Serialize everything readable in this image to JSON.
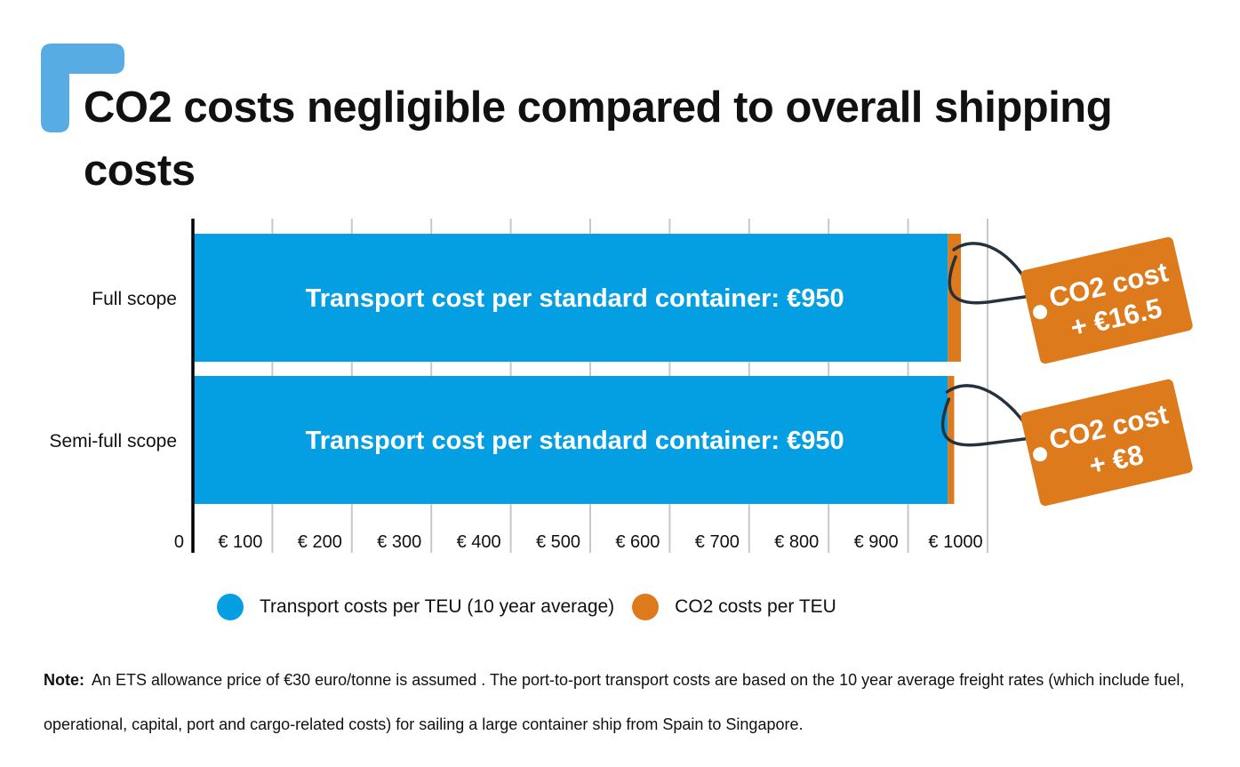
{
  "title": "CO2 costs negligible compared to overall shipping costs",
  "colors": {
    "transport": "#049fe3",
    "co2": "#dd7a1c",
    "corner_mark": "#57ade3",
    "grid": "#c8c8c8",
    "axis": "#000000"
  },
  "chart_data": {
    "type": "bar",
    "orientation": "horizontal",
    "stacked": true,
    "categories": [
      "Full scope",
      "Semi-full scope"
    ],
    "series": [
      {
        "name": "Transport costs per TEU (10 year average)",
        "values": [
          950,
          950
        ],
        "color": "#049fe3"
      },
      {
        "name": "CO2 costs per TEU",
        "values": [
          16.5,
          8
        ],
        "color": "#dd7a1c"
      }
    ],
    "xlim": [
      0,
      1000
    ],
    "x_ticks": [
      "0",
      "€ 100",
      "€ 200",
      "€ 300",
      "€ 400",
      "€ 500",
      "€ 600",
      "€ 700",
      "€ 800",
      "€ 900",
      "€ 1000"
    ],
    "grid": true,
    "legend_position": "bottom",
    "bar_labels": [
      "Transport cost per standard container: €950",
      "Transport cost per standard container: €950"
    ],
    "annotations": [
      {
        "line1": "CO2 cost",
        "line2": "+ €16.5"
      },
      {
        "line1": "CO2 cost",
        "line2": "+ €8"
      }
    ]
  },
  "note": {
    "label": "Note:",
    "text": "An ETS allowance price of €30 euro/tonne is assumed . The port-to-port transport costs are based on the 10 year  average freight rates (which include fuel, operational, capital, port and cargo-related costs) for sailing a large container ship from Spain to Singapore."
  }
}
